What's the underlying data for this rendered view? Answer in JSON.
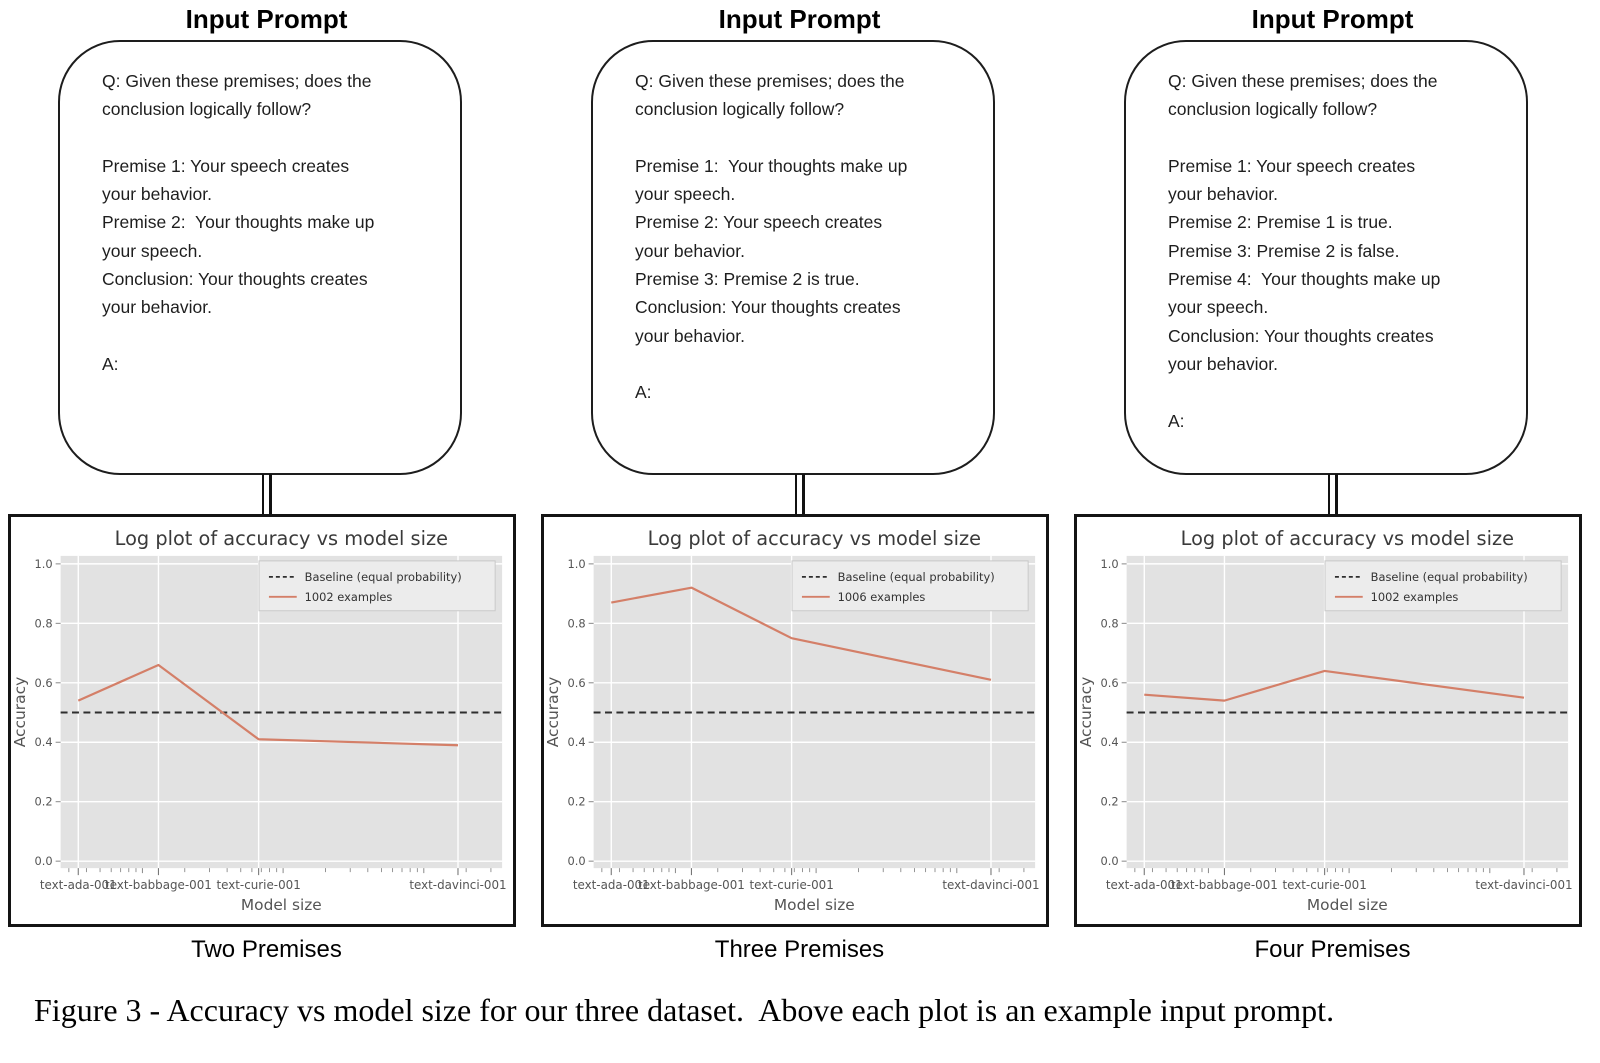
{
  "caption": "Figure 3 - Accuracy vs model size for our three dataset.  Above each plot is an example input prompt.",
  "colors": {
    "plot_bg": "#e2e2e2",
    "grid": "#ffffff",
    "accent_line": "#d47f68",
    "baseline": "#2e2e2e",
    "tick_text": "#555555",
    "title_text": "#3a3a3a"
  },
  "columns": [
    {
      "prompt_title": "Input Prompt",
      "prompt_lines": [
        "Q: Given these premises; does the",
        "conclusion logically follow?",
        "",
        "Premise 1: Your speech creates",
        "your behavior.",
        "Premise 2:  Your thoughts make up",
        "your speech.",
        "Conclusion: Your thoughts creates",
        "your behavior.",
        "",
        "A:"
      ],
      "dataset_label": "Two Premises"
    },
    {
      "prompt_title": "Input Prompt",
      "prompt_lines": [
        "Q: Given these premises; does the",
        "conclusion logically follow?",
        "",
        "Premise 1:  Your thoughts make up",
        "your speech.",
        "Premise 2: Your speech creates",
        "your behavior.",
        "Premise 3: Premise 2 is true.",
        "Conclusion: Your thoughts creates",
        "your behavior.",
        "",
        "A:"
      ],
      "dataset_label": "Three Premises"
    },
    {
      "prompt_title": "Input Prompt",
      "prompt_lines": [
        "Q: Given these premises; does the",
        "conclusion logically follow?",
        "",
        "Premise 1: Your speech creates",
        "your behavior.",
        "Premise 2: Premise 1 is true.",
        "Premise 3: Premise 2 is false.",
        "Premise 4:  Your thoughts make up",
        "your speech.",
        "Conclusion: Your thoughts creates",
        "your behavior.",
        "",
        "A:"
      ],
      "dataset_label": "Four Premises"
    }
  ],
  "chart_data": [
    {
      "type": "line",
      "title": "Log plot of accuracy vs model size",
      "xlabel": "Model size",
      "ylabel": "Accuracy",
      "xscale": "log",
      "grid": true,
      "legend_position": "upper right",
      "categories": [
        "text-ada-001",
        "text-babbage-001",
        "text-curie-001",
        "text-davinci-001"
      ],
      "yticks": [
        0.0,
        0.2,
        0.4,
        0.6,
        0.8,
        1.0
      ],
      "ylim": [
        0.0,
        1.0
      ],
      "series": [
        {
          "name": "Baseline (equal probability)",
          "style": "dashed",
          "color": "#2e2e2e",
          "values": [
            0.5,
            0.5,
            0.5,
            0.5
          ]
        },
        {
          "name": "1002 examples",
          "style": "solid",
          "color": "#d47f68",
          "values": [
            0.54,
            0.66,
            0.41,
            0.39
          ]
        }
      ]
    },
    {
      "type": "line",
      "title": "Log plot of accuracy vs model size",
      "xlabel": "Model size",
      "ylabel": "Accuracy",
      "xscale": "log",
      "grid": true,
      "legend_position": "upper right",
      "categories": [
        "text-ada-001",
        "text-babbage-001",
        "text-curie-001",
        "text-davinci-001"
      ],
      "yticks": [
        0.0,
        0.2,
        0.4,
        0.6,
        0.8,
        1.0
      ],
      "ylim": [
        0.0,
        1.0
      ],
      "series": [
        {
          "name": "Baseline (equal probability)",
          "style": "dashed",
          "color": "#2e2e2e",
          "values": [
            0.5,
            0.5,
            0.5,
            0.5
          ]
        },
        {
          "name": "1006 examples",
          "style": "solid",
          "color": "#d47f68",
          "values": [
            0.87,
            0.92,
            0.75,
            0.61
          ]
        }
      ]
    },
    {
      "type": "line",
      "title": "Log plot of accuracy vs model size",
      "xlabel": "Model size",
      "ylabel": "Accuracy",
      "xscale": "log",
      "grid": true,
      "legend_position": "upper right",
      "categories": [
        "text-ada-001",
        "text-babbage-001",
        "text-curie-001",
        "text-davinci-001"
      ],
      "yticks": [
        0.0,
        0.2,
        0.4,
        0.6,
        0.8,
        1.0
      ],
      "ylim": [
        0.0,
        1.0
      ],
      "series": [
        {
          "name": "Baseline (equal probability)",
          "style": "dashed",
          "color": "#2e2e2e",
          "values": [
            0.5,
            0.5,
            0.5,
            0.5
          ]
        },
        {
          "name": "1002 examples",
          "style": "solid",
          "color": "#d47f68",
          "values": [
            0.56,
            0.54,
            0.64,
            0.55
          ]
        }
      ]
    }
  ]
}
